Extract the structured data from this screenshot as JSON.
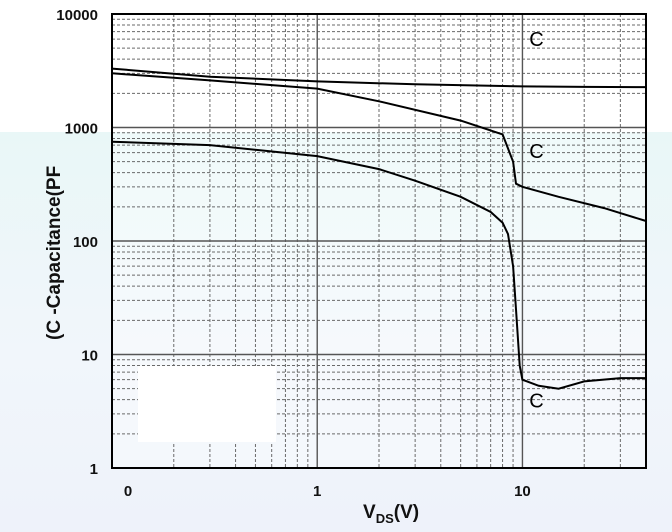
{
  "chart_data": {
    "type": "line",
    "xlabel_main": "V",
    "xlabel_sub": "DS",
    "xlabel_unit": "(V)",
    "ylabel": "(C -Capacitance(PF",
    "x_scale": "log",
    "y_scale": "log",
    "xlim": [
      0.1,
      40
    ],
    "ylim": [
      1,
      10000
    ],
    "x_tick_labels": [
      {
        "value": 0.1,
        "label": "0"
      },
      {
        "value": 1,
        "label": "1"
      },
      {
        "value": 10,
        "label": "10"
      }
    ],
    "y_tick_labels": [
      {
        "value": 1,
        "label": "1"
      },
      {
        "value": 10,
        "label": "10"
      },
      {
        "value": 100,
        "label": "100"
      },
      {
        "value": 1000,
        "label": "1000"
      },
      {
        "value": 10000,
        "label": "10000"
      }
    ],
    "grid": true,
    "series": [
      {
        "x": [
          0.1,
          0.3,
          1,
          3,
          10,
          20,
          40
        ],
        "y": [
          3300,
          2800,
          2550,
          2400,
          2300,
          2280,
          2270
        ]
      },
      {
        "x": [
          0.1,
          0.3,
          1,
          2,
          5,
          8,
          9,
          9.3,
          10,
          15,
          25,
          40
        ],
        "y": [
          3000,
          2600,
          2200,
          1700,
          1150,
          870,
          500,
          320,
          300,
          245,
          195,
          150
        ]
      },
      {
        "x": [
          0.1,
          0.3,
          1,
          2,
          3,
          5,
          7,
          8,
          8.5,
          9,
          9.3,
          9.7,
          10,
          12,
          15,
          20,
          30,
          40
        ],
        "y": [
          750,
          700,
          560,
          430,
          340,
          245,
          180,
          145,
          115,
          60,
          25,
          8,
          6,
          5.3,
          5,
          5.8,
          6.2,
          6.2
        ]
      }
    ],
    "curve_labels": [
      {
        "text": "C",
        "x": 10.8,
        "y": 5200
      },
      {
        "text": "C",
        "x": 10.8,
        "y": 540
      },
      {
        "text": "C",
        "x": 10.8,
        "y": 3.4
      }
    ]
  }
}
